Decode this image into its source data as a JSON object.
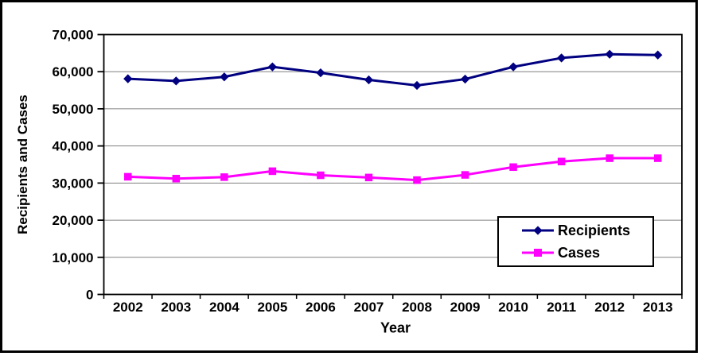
{
  "chart_data": {
    "type": "line",
    "title": "",
    "xlabel": "Year",
    "ylabel": "Recipients and Cases",
    "categories": [
      "2002",
      "2003",
      "2004",
      "2005",
      "2006",
      "2007",
      "2008",
      "2009",
      "2010",
      "2011",
      "2012",
      "2013"
    ],
    "series": [
      {
        "name": "Recipients",
        "color": "#000080",
        "marker": "diamond",
        "values": [
          58100,
          57500,
          58600,
          61300,
          59700,
          57800,
          56300,
          58000,
          61300,
          63700,
          64700,
          64500
        ]
      },
      {
        "name": "Cases",
        "color": "#FF00FF",
        "marker": "square",
        "values": [
          31700,
          31200,
          31600,
          33200,
          32100,
          31500,
          30800,
          32200,
          34300,
          35800,
          36700,
          36700
        ]
      }
    ],
    "ylim": [
      0,
      70000
    ],
    "ytick_step": 10000,
    "ytick_labels": [
      "0",
      "10,000",
      "20,000",
      "30,000",
      "40,000",
      "50,000",
      "60,000",
      "70,000"
    ],
    "grid": "horizontal",
    "legend_position": "inside-right",
    "colors": {
      "axis": "#000000",
      "grid": "#808080",
      "background": "#FFFFFF",
      "frame_border": "#000000"
    }
  }
}
